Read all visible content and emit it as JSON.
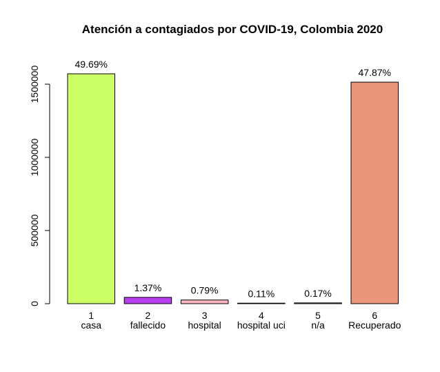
{
  "chart_data": {
    "type": "bar",
    "title": "Atención a contagiados por COVID-19, Colombia 2020",
    "category_codes": [
      "1",
      "2",
      "3",
      "4",
      "5",
      "6"
    ],
    "categories": [
      "casa",
      "fallecido",
      "hospital",
      "hospital uci",
      "n/a",
      "Recuperado"
    ],
    "values": [
      1571000,
      43300,
      25000,
      3500,
      5400,
      1514000
    ],
    "annotations": [
      "49.69%",
      "1.37%",
      "0.79%",
      "0.11%",
      "0.17%",
      "47.87%"
    ],
    "colors": [
      "#ccff66",
      "#b83ff0",
      "#ffb6c1",
      "#2b2b2b",
      "#d3d3d3",
      "#e9967a"
    ],
    "ylim": [
      0,
      1650000
    ],
    "yticks": [
      0,
      500000,
      1000000,
      1500000
    ]
  }
}
